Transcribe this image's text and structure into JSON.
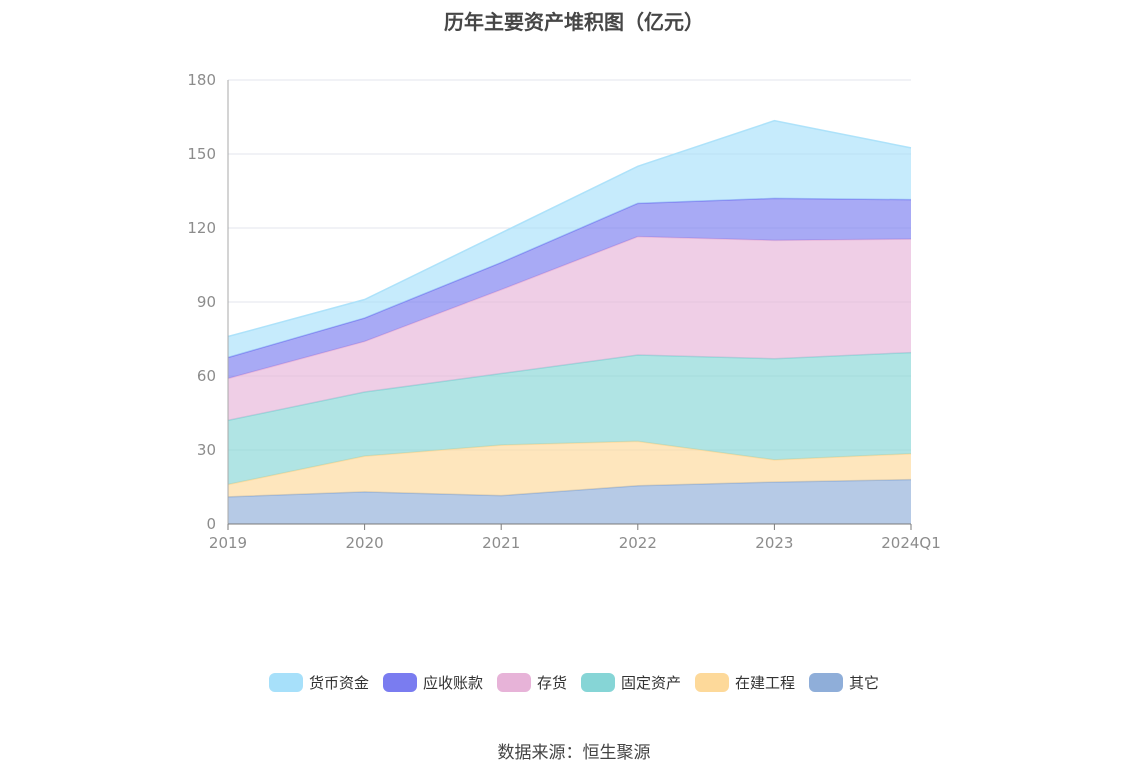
{
  "source_text": "数据来源：恒生聚源",
  "chart_data": {
    "type": "area",
    "stacked": true,
    "title": "历年主要资产堆积图（亿元）",
    "categories": [
      "2019",
      "2020",
      "2021",
      "2022",
      "2023",
      "2024Q1"
    ],
    "ylim": [
      0,
      180
    ],
    "yticks": [
      0,
      30,
      60,
      90,
      120,
      150,
      180
    ],
    "grid": true,
    "legend_position": "bottom",
    "series": [
      {
        "name": "其它",
        "color": "#8faed9",
        "values": [
          11,
          13,
          11.5,
          15.5,
          17,
          18
        ]
      },
      {
        "name": "在建工程",
        "color": "#fdd99a",
        "values": [
          5,
          14.5,
          20.5,
          18,
          9,
          10.5
        ]
      },
      {
        "name": "固定资产",
        "color": "#86d5d6",
        "values": [
          26,
          26,
          29,
          35,
          41,
          41
        ]
      },
      {
        "name": "存货",
        "color": "#e7b3d8",
        "values": [
          17,
          20.5,
          34,
          48,
          48,
          46
        ]
      },
      {
        "name": "应收账款",
        "color": "#7a7cf0",
        "values": [
          8.5,
          9.5,
          11,
          13.5,
          17,
          16
        ]
      },
      {
        "name": "货币资金",
        "color": "#a7e0fa",
        "values": [
          8.5,
          7.5,
          12,
          15,
          31.5,
          21
        ]
      }
    ],
    "legend_order": [
      "货币资金",
      "应收账款",
      "存货",
      "固定资产",
      "在建工程",
      "其它"
    ]
  }
}
